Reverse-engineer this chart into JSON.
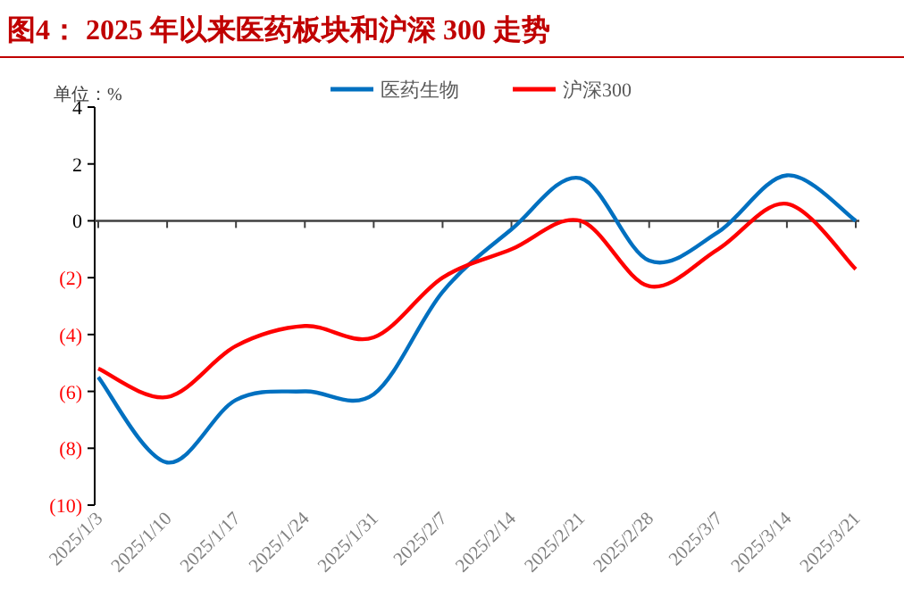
{
  "chart_data": {
    "type": "line",
    "title": "图4：  2025 年以来医药板块和沪深 300 走势",
    "categories": [
      "2025/1/3",
      "2025/1/10",
      "2025/1/17",
      "2025/1/24",
      "2025/1/31",
      "2025/2/7",
      "2025/2/14",
      "2025/2/21",
      "2025/2/28",
      "2025/3/7",
      "2025/3/14",
      "2025/3/21"
    ],
    "series": [
      {
        "name": "医药生物",
        "color": "#0070c0",
        "values": [
          -5.5,
          -8.5,
          -6.3,
          -6.0,
          -6.1,
          -2.5,
          -0.3,
          1.5,
          -1.4,
          -0.4,
          1.6,
          0.0
        ]
      },
      {
        "name": "沪深300",
        "color": "#ff0000",
        "values": [
          -5.2,
          -6.2,
          -4.4,
          -3.7,
          -4.1,
          -2.0,
          -1.0,
          0.0,
          -2.3,
          -1.0,
          0.6,
          -1.7
        ]
      }
    ],
    "ylim": [
      -10,
      4
    ],
    "yticks": [
      4,
      2,
      0,
      {
        "value": -2,
        "label": "(2)"
      },
      {
        "value": -4,
        "label": "(4)"
      },
      {
        "value": -6,
        "label": "(6)"
      },
      {
        "value": -8,
        "label": "(8)"
      },
      {
        "value": -10,
        "label": "(10)"
      }
    ],
    "annotations": [
      "单位：%"
    ],
    "legend": "top",
    "marker": "none",
    "line_style": "solid"
  }
}
